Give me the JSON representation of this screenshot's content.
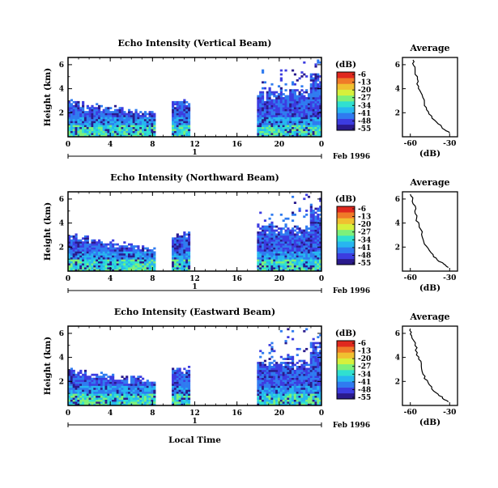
{
  "chart_data": [
    {
      "type": "heatmap",
      "title": "Echo Intensity (Vertical Beam)",
      "ylabel": "Height (km)",
      "xlabel": "Local Time",
      "x_ticks": [
        "0",
        "4",
        "8",
        "12",
        "16",
        "20",
        "0"
      ],
      "y_ticks": [
        "2",
        "4",
        "6"
      ],
      "xlim": [
        0,
        24
      ],
      "ylim": [
        0,
        6.6
      ],
      "day_label": "1",
      "date_label": "Feb 1996",
      "colorbar": {
        "unit": "(dB)",
        "ticks": [
          "-6",
          "-13",
          "-20",
          "-27",
          "-34",
          "-41",
          "-48",
          "-55"
        ]
      },
      "profile": {
        "title": "Average",
        "xlabel": "(dB)",
        "x_ticks": [
          "-60",
          "-30"
        ],
        "y_ticks": [
          "2",
          "4",
          "6"
        ],
        "xlim": [
          -66,
          -24
        ],
        "x": [
          -58,
          -57,
          -55,
          -54,
          -51,
          -49,
          -46,
          -40,
          -35,
          -30
        ],
        "y": [
          6.4,
          5.8,
          5.0,
          4.2,
          3.5,
          2.6,
          1.9,
          1.2,
          0.7,
          0.3
        ]
      }
    },
    {
      "type": "heatmap",
      "title": "Echo Intensity (Northward Beam)",
      "ylabel": "Height (km)",
      "xlabel": "Local Time",
      "x_ticks": [
        "0",
        "4",
        "8",
        "12",
        "16",
        "20",
        "0"
      ],
      "y_ticks": [
        "2",
        "4",
        "6"
      ],
      "xlim": [
        0,
        24
      ],
      "ylim": [
        0,
        6.6
      ],
      "day_label": "1",
      "date_label": "Feb 1996",
      "colorbar": {
        "unit": "(dB)",
        "ticks": [
          "-6",
          "-13",
          "-20",
          "-27",
          "-34",
          "-41",
          "-48",
          "-55"
        ]
      },
      "profile": {
        "title": "Average",
        "xlabel": "(dB)",
        "x_ticks": [
          "-60",
          "-30"
        ],
        "y_ticks": [
          "2",
          "4",
          "6"
        ],
        "xlim": [
          -66,
          -24
        ],
        "x": [
          -60,
          -58,
          -56,
          -55,
          -52,
          -50,
          -47,
          -42,
          -36,
          -31
        ],
        "y": [
          6.4,
          5.8,
          5.0,
          4.2,
          3.5,
          2.6,
          1.9,
          1.2,
          0.7,
          0.3
        ]
      }
    },
    {
      "type": "heatmap",
      "title": "Echo Intensity (Eastward Beam)",
      "ylabel": "Height (km)",
      "xlabel": "Local Time",
      "x_ticks": [
        "0",
        "4",
        "8",
        "12",
        "16",
        "20",
        "0"
      ],
      "y_ticks": [
        "2",
        "4",
        "6"
      ],
      "xlim": [
        0,
        24
      ],
      "ylim": [
        0,
        6.6
      ],
      "day_label": "1",
      "date_label": "Feb 1996",
      "colorbar": {
        "unit": "(dB)",
        "ticks": [
          "-6",
          "-13",
          "-20",
          "-27",
          "-34",
          "-41",
          "-48",
          "-55"
        ]
      },
      "profile": {
        "title": "Average",
        "xlabel": "(dB)",
        "x_ticks": [
          "-60",
          "-30"
        ],
        "y_ticks": [
          "2",
          "4",
          "6"
        ],
        "xlim": [
          -66,
          -24
        ],
        "x": [
          -60,
          -59,
          -56,
          -55,
          -52,
          -50,
          -47,
          -42,
          -36,
          -31
        ],
        "y": [
          6.4,
          5.8,
          5.0,
          4.2,
          3.5,
          2.6,
          1.9,
          1.2,
          0.7,
          0.3
        ]
      }
    }
  ],
  "colors": {
    "jet": [
      "#2a1a8c",
      "#3c3ce0",
      "#2f7bf0",
      "#27b6f0",
      "#30e0d0",
      "#7df07a",
      "#d6f03c",
      "#f0c030",
      "#f07a28",
      "#e0281e"
    ]
  }
}
